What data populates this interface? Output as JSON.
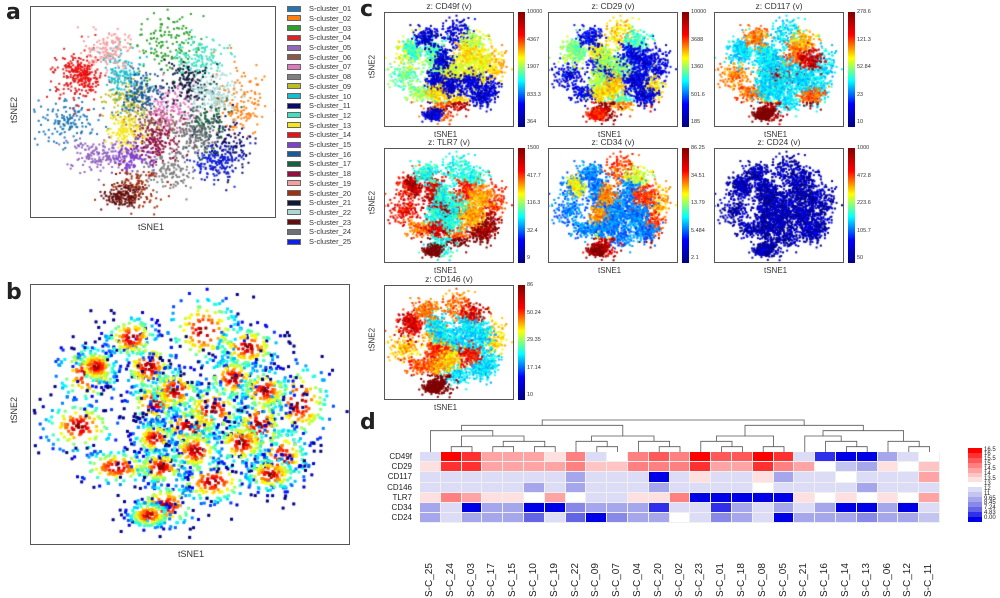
{
  "panel_labels": {
    "a": "a",
    "b": "b",
    "c": "c",
    "d": "d"
  },
  "axes": {
    "x": "tSNE1",
    "y": "tSNE2"
  },
  "chart_data": [
    {
      "type": "scatter",
      "panel": "a",
      "xlabel": "tSNE1",
      "ylabel": "tSNE2",
      "legend_position": "right",
      "legend": [
        {
          "name": "S-cluster_01",
          "color": "#1f77b4"
        },
        {
          "name": "S-cluster_02",
          "color": "#ff7f0e"
        },
        {
          "name": "S-cluster_03",
          "color": "#2ca02c"
        },
        {
          "name": "S-cluster_04",
          "color": "#d62728"
        },
        {
          "name": "S-cluster_05",
          "color": "#9467bd"
        },
        {
          "name": "S-cluster_06",
          "color": "#8c564b"
        },
        {
          "name": "S-cluster_07",
          "color": "#e377c2"
        },
        {
          "name": "S-cluster_08",
          "color": "#7f7f7f"
        },
        {
          "name": "S-cluster_09",
          "color": "#bcbd22"
        },
        {
          "name": "S-cluster_10",
          "color": "#17becf"
        },
        {
          "name": "S-cluster_11",
          "color": "#0a0a6a"
        },
        {
          "name": "S-cluster_12",
          "color": "#40e0c0"
        },
        {
          "name": "S-cluster_13",
          "color": "#f5e61a"
        },
        {
          "name": "S-cluster_14",
          "color": "#ee1111"
        },
        {
          "name": "S-cluster_15",
          "color": "#8040d0"
        },
        {
          "name": "S-cluster_16",
          "color": "#1a5a9a"
        },
        {
          "name": "S-cluster_17",
          "color": "#1a6040"
        },
        {
          "name": "S-cluster_18",
          "color": "#901040"
        },
        {
          "name": "S-cluster_19",
          "color": "#f4a0a0"
        },
        {
          "name": "S-cluster_20",
          "color": "#a03010"
        },
        {
          "name": "S-cluster_21",
          "color": "#101838"
        },
        {
          "name": "S-cluster_22",
          "color": "#a8d8d8"
        },
        {
          "name": "S-cluster_23",
          "color": "#601010"
        },
        {
          "name": "S-cluster_24",
          "color": "#707078"
        },
        {
          "name": "S-cluster_25",
          "color": "#1020e0"
        }
      ]
    },
    {
      "type": "scatter",
      "panel": "b",
      "xlabel": "tSNE1",
      "ylabel": "tSNE2",
      "colormap": "density (jet)"
    },
    {
      "type": "scatter",
      "panel": "c",
      "xlabel": "tSNE1",
      "ylabel": "tSNE2",
      "colormap": "jet",
      "markers": [
        {
          "title": "z: CD49f (v)",
          "ticks": [
            "10000",
            "4367",
            "1907",
            "833.3",
            "364"
          ]
        },
        {
          "title": "z: CD29 (v)",
          "ticks": [
            "10000",
            "3688",
            "1360",
            "501.6",
            "185"
          ]
        },
        {
          "title": "z: CD117 (v)",
          "ticks": [
            "278.6",
            "121.3",
            "52.84",
            "23",
            "10"
          ]
        },
        {
          "title": "z: TLR7 (v)",
          "ticks": [
            "1500",
            "417.7",
            "116.3",
            "32.4",
            "9"
          ]
        },
        {
          "title": "z: CD34 (v)",
          "ticks": [
            "86.25",
            "34.51",
            "13.79",
            "5.484",
            "2.1"
          ]
        },
        {
          "title": "z: CD24 (v)",
          "ticks": [
            "1000",
            "472.8",
            "223.6",
            "105.7",
            "50"
          ]
        },
        {
          "title": "z: CD146 (v)",
          "ticks": [
            "86",
            "50.24",
            "29.35",
            "17.14",
            "10"
          ]
        }
      ]
    },
    {
      "type": "heatmap",
      "panel": "d",
      "rows": [
        "CD49f",
        "CD29",
        "CD117",
        "CD146",
        "TLR7",
        "CD34",
        "CD24"
      ],
      "columns": [
        "S-C_25",
        "S-C_24",
        "S-C_03",
        "S-C_17",
        "S-C_15",
        "S-C_10",
        "S-C_19",
        "S-C_22",
        "S-C_09",
        "S-C_07",
        "S-C_04",
        "S-C_20",
        "S-C_02",
        "S-C_23",
        "S-C_01",
        "S-C_18",
        "S-C_08",
        "S-C_05",
        "S-C_21",
        "S-C_16",
        "S-C_14",
        "S-C_13",
        "S-C_06",
        "S-C_12",
        "S-C_11"
      ],
      "values": [
        [
          12,
          16.5,
          16,
          14.5,
          14.5,
          14.5,
          13.5,
          15,
          12,
          13,
          15,
          15.5,
          15,
          16.5,
          15.5,
          15.5,
          16.5,
          16,
          12,
          4.83,
          0,
          0,
          9.65,
          12,
          13
        ],
        [
          13.5,
          16,
          16,
          14.5,
          14.5,
          14.5,
          14.5,
          15,
          14,
          14,
          15,
          15,
          15,
          16,
          14.5,
          14.5,
          16,
          15,
          14.5,
          13,
          11,
          9.65,
          13.5,
          13,
          14
        ],
        [
          12,
          12,
          12,
          12,
          12,
          12,
          12,
          9.65,
          12,
          12,
          12,
          0,
          12,
          13.5,
          12,
          12,
          13.5,
          9.65,
          12,
          12,
          13,
          12,
          12,
          12,
          14.5
        ],
        [
          12,
          12,
          12,
          12,
          12,
          9.65,
          12,
          9.65,
          12,
          12,
          12,
          9.65,
          12,
          12,
          12,
          12,
          13,
          12,
          12,
          12,
          12,
          9.65,
          12,
          12,
          12
        ],
        [
          13.5,
          15,
          14.5,
          13.5,
          13.5,
          13,
          14.5,
          13,
          12,
          12,
          13.5,
          13.5,
          15,
          0,
          0,
          0,
          0,
          0,
          13.5,
          13,
          13.5,
          13,
          13.5,
          13,
          14.5
        ],
        [
          9.65,
          12,
          0,
          9.65,
          9.65,
          0,
          0,
          8.45,
          9.65,
          9.65,
          9.65,
          4.83,
          12,
          12,
          4.83,
          9.65,
          12,
          9.65,
          12,
          9.65,
          0,
          0,
          9.65,
          0,
          12
        ],
        [
          9.65,
          12,
          9.65,
          9.65,
          9.65,
          7.24,
          12,
          7.24,
          0,
          8.45,
          9.65,
          9.65,
          13,
          12,
          8.45,
          9.65,
          12,
          0,
          9.65,
          9.65,
          9.65,
          8.45,
          9.65,
          9.65,
          11
        ]
      ],
      "legend": [
        {
          "label": "16.5",
          "color": "#ff0000"
        },
        {
          "label": "16",
          "color": "#ff3030"
        },
        {
          "label": "15.5",
          "color": "#ff5858"
        },
        {
          "label": "15",
          "color": "#ff8080"
        },
        {
          "label": "14.5",
          "color": "#ffa4a4"
        },
        {
          "label": "14",
          "color": "#ffc4c4"
        },
        {
          "label": "13.5",
          "color": "#ffe0e0"
        },
        {
          "label": "13",
          "color": "#ffffff"
        },
        {
          "label": "12",
          "color": "#dcdcf6"
        },
        {
          "label": "11",
          "color": "#c4c4f0"
        },
        {
          "label": "9.65",
          "color": "#a6a6ec"
        },
        {
          "label": "8.45",
          "color": "#8888e8"
        },
        {
          "label": "7.24",
          "color": "#6464e6"
        },
        {
          "label": "4.83",
          "color": "#3030ea"
        },
        {
          "label": "0.00",
          "color": "#0000e6"
        }
      ]
    }
  ]
}
